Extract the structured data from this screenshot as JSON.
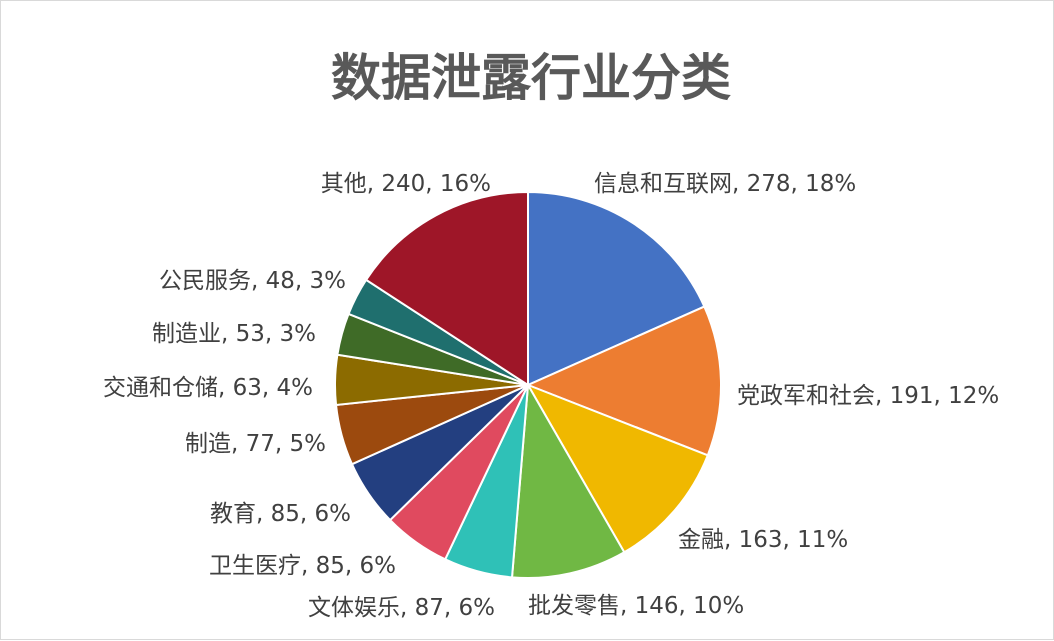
{
  "chart_data": {
    "type": "pie",
    "title": "数据泄露行业分类",
    "legend": "none",
    "label_format": "category, value, percent",
    "slices": [
      {
        "label": "信息和互联网",
        "value": 278,
        "percent": "18%",
        "color": "#4472C4"
      },
      {
        "label": "党政军和社会",
        "value": 191,
        "percent": "12%",
        "color": "#ED7D31"
      },
      {
        "label": "金融",
        "value": 163,
        "percent": "11%",
        "color": "#F0B800"
      },
      {
        "label": "批发零售",
        "value": 146,
        "percent": "10%",
        "color": "#70B844"
      },
      {
        "label": "文体娱乐",
        "value": 87,
        "percent": "6%",
        "color": "#2FC1B7"
      },
      {
        "label": "卫生医疗",
        "value": 85,
        "percent": "6%",
        "color": "#E04A5F"
      },
      {
        "label": "教育",
        "value": 85,
        "percent": "6%",
        "color": "#233F80"
      },
      {
        "label": "制造",
        "value": 77,
        "percent": "5%",
        "color": "#9C4A0E"
      },
      {
        "label": "交通和仓储",
        "value": 63,
        "percent": "4%",
        "color": "#8C6B00"
      },
      {
        "label": "制造业",
        "value": 53,
        "percent": "3%",
        "color": "#3F6B27"
      },
      {
        "label": "公民服务",
        "value": 48,
        "percent": "3%",
        "color": "#1F6F6E"
      },
      {
        "label": "其他",
        "value": 240,
        "percent": "16%",
        "color": "#9E1628"
      }
    ]
  }
}
